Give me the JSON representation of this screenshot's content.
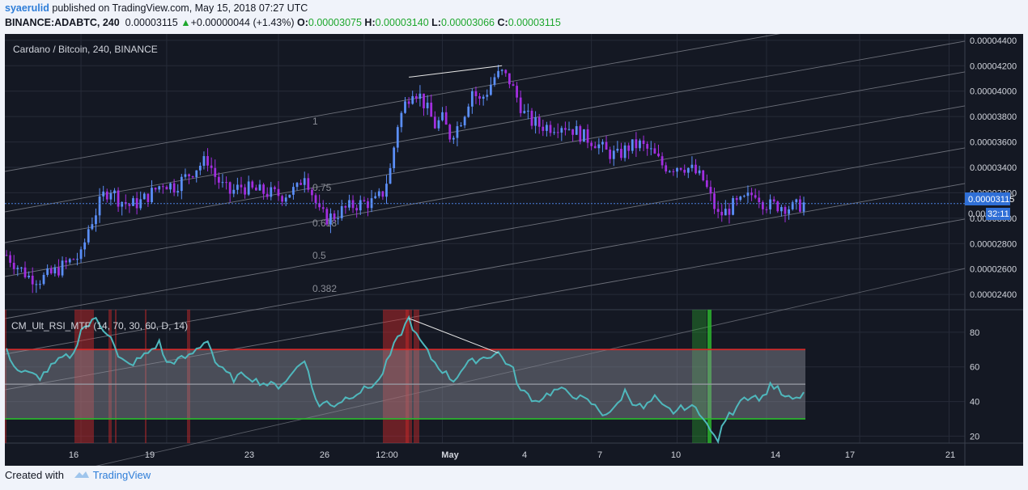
{
  "header": {
    "user": "syaerulid",
    "published": "published on TradingView.com, May 15, 2018 07:27 UTC",
    "symbol": "BINANCE:ADABTC, 240",
    "last": "0.00003115",
    "change": "+0.00000044 (+1.43%)",
    "o_label": "O:",
    "o_value": "0.00003075",
    "h_label": "H:",
    "h_value": "0.00003140",
    "l_label": "L:",
    "l_value": "0.00003066",
    "c_label": "C:",
    "c_value": "0.00003115"
  },
  "chart_title": "Cardano / Bitcoin, 240, BINANCE",
  "indicator_label": "CM_Ult_RSI_MTF (14, 70, 30, 60, D, 14)",
  "price_tag": "0.00003115",
  "countdown_prefix": "0.000",
  "countdown": "32:11",
  "fib_labels": [
    {
      "level": 1,
      "label": "1"
    },
    {
      "level": 0.75,
      "label": "0.75"
    },
    {
      "level": 0.618,
      "label": "0.618"
    },
    {
      "level": 0.5,
      "label": "0.5"
    },
    {
      "level": 0.382,
      "label": "0.382"
    }
  ],
  "footer": {
    "created": "Created with",
    "brand": "TradingView"
  },
  "colors": {
    "bull": "#5b8ff9",
    "bear": "#a32ee0",
    "rsi": "#4fb8bd",
    "ob": "#d32b2b",
    "os": "#2bb32e",
    "bg": "#141823"
  },
  "chart_data": [
    {
      "type": "candlestick",
      "title": "Cardano / Bitcoin, 240, BINANCE",
      "x_ticks": [
        "16",
        "19",
        "23",
        "26",
        "12:00",
        "May",
        "4",
        "7",
        "10",
        "14",
        "17",
        "21"
      ],
      "y_ticks": [
        "0.00004400",
        "0.00004200",
        "0.00004000",
        "0.00003800",
        "0.00003600",
        "0.00003400",
        "0.00003200",
        "0.00003000",
        "0.00002800",
        "0.00002600",
        "0.00002400"
      ],
      "ylim": [
        2.28e-05,
        4.45e-05
      ],
      "close_path": [
        [
          0,
          2.71e-05
        ],
        [
          3,
          2.62e-05
        ],
        [
          6,
          2.54e-05
        ],
        [
          9,
          2.52e-05
        ],
        [
          12,
          2.56e-05
        ],
        [
          15,
          2.62e-05
        ],
        [
          18,
          2.68e-05
        ],
        [
          20,
          2.7e-05
        ],
        [
          22,
          2.92e-05
        ],
        [
          24,
          3.05e-05
        ],
        [
          26,
          3.18e-05
        ],
        [
          28,
          3.23e-05
        ],
        [
          30,
          3.15e-05
        ],
        [
          33,
          3.1e-05
        ],
        [
          36,
          3.13e-05
        ],
        [
          39,
          3.2e-05
        ],
        [
          42,
          3.28e-05
        ],
        [
          45,
          3.25e-05
        ],
        [
          48,
          3.32e-05
        ],
        [
          51,
          3.4e-05
        ],
        [
          54,
          3.46e-05
        ],
        [
          56,
          3.33e-05
        ],
        [
          58,
          3.25e-05
        ],
        [
          60,
          3.2e-05
        ],
        [
          63,
          3.25e-05
        ],
        [
          66,
          3.22e-05
        ],
        [
          70,
          3.2e-05
        ],
        [
          74,
          3.18e-05
        ],
        [
          78,
          3.23e-05
        ],
        [
          80,
          3.36e-05
        ],
        [
          82,
          3.2e-05
        ],
        [
          84,
          3.04e-05
        ],
        [
          86,
          3e-05
        ],
        [
          88,
          3.02e-05
        ],
        [
          90,
          3.06e-05
        ],
        [
          93,
          3.1e-05
        ],
        [
          96,
          3.12e-05
        ],
        [
          99,
          3.13e-05
        ],
        [
          101,
          3.2e-05
        ],
        [
          103,
          3.38e-05
        ],
        [
          105,
          3.74e-05
        ],
        [
          107,
          3.9e-05
        ],
        [
          109,
          4.02e-05
        ],
        [
          111,
          3.96e-05
        ],
        [
          113,
          3.85e-05
        ],
        [
          115,
          3.73e-05
        ],
        [
          117,
          3.78e-05
        ],
        [
          119,
          3.65e-05
        ],
        [
          121,
          3.72e-05
        ],
        [
          123,
          3.84e-05
        ],
        [
          125,
          4.01e-05
        ],
        [
          127,
          3.92e-05
        ],
        [
          129,
          4e-05
        ],
        [
          131,
          4.11e-05
        ],
        [
          133,
          4.14e-05
        ],
        [
          135,
          4.08e-05
        ],
        [
          137,
          3.95e-05
        ],
        [
          139,
          3.82e-05
        ],
        [
          141,
          3.76e-05
        ],
        [
          143,
          3.73e-05
        ],
        [
          146,
          3.72e-05
        ],
        [
          149,
          3.74e-05
        ],
        [
          152,
          3.7e-05
        ],
        [
          155,
          3.64e-05
        ],
        [
          158,
          3.6e-05
        ],
        [
          161,
          3.52e-05
        ],
        [
          164,
          3.49e-05
        ],
        [
          167,
          3.56e-05
        ],
        [
          170,
          3.58e-05
        ],
        [
          173,
          3.52e-05
        ],
        [
          176,
          3.42e-05
        ],
        [
          178,
          3.4e-05
        ],
        [
          181,
          3.42e-05
        ],
        [
          184,
          3.38e-05
        ],
        [
          187,
          3.3e-05
        ],
        [
          189,
          3.16e-05
        ],
        [
          191,
          3.02e-05
        ],
        [
          193,
          3.05e-05
        ],
        [
          195,
          3.1e-05
        ],
        [
          197,
          3.12e-05
        ],
        [
          199,
          3.16e-05
        ],
        [
          201,
          3.21e-05
        ],
        [
          203,
          3.13e-05
        ],
        [
          205,
          3.1e-05
        ],
        [
          208,
          3.1e-05
        ],
        [
          211,
          3.08e-05
        ],
        [
          214,
          3.115e-05
        ]
      ]
    },
    {
      "type": "line",
      "title": "CM_Ult_RSI_MTF (14, 70, 30, 60, D, 14)",
      "y_ticks": [
        "80",
        "60",
        "40",
        "20"
      ],
      "ylim": [
        16,
        93
      ],
      "levels": {
        "overbought": 70,
        "mid": 50,
        "oversold": 30
      },
      "series": [
        {
          "values": [
            [
              0,
              69
            ],
            [
              3,
              58
            ],
            [
              6,
              56
            ],
            [
              9,
              54
            ],
            [
              12,
              60
            ],
            [
              15,
              65
            ],
            [
              18,
              67
            ],
            [
              20,
              82
            ],
            [
              22,
              84
            ],
            [
              24,
              88
            ],
            [
              26,
              82
            ],
            [
              28,
              78
            ],
            [
              30,
              65
            ],
            [
              33,
              61
            ],
            [
              36,
              65
            ],
            [
              39,
              70
            ],
            [
              41,
              74
            ],
            [
              43,
              62
            ],
            [
              46,
              64
            ],
            [
              49,
              66
            ],
            [
              52,
              72
            ],
            [
              54,
              76
            ],
            [
              56,
              63
            ],
            [
              58,
              58
            ],
            [
              61,
              53
            ],
            [
              64,
              56
            ],
            [
              67,
              52
            ],
            [
              70,
              50
            ],
            [
              73,
              49
            ],
            [
              76,
              54
            ],
            [
              78,
              60
            ],
            [
              80,
              65
            ],
            [
              82,
              48
            ],
            [
              84,
              37
            ],
            [
              86,
              40
            ],
            [
              88,
              38
            ],
            [
              91,
              42
            ],
            [
              94,
              45
            ],
            [
              97,
              48
            ],
            [
              100,
              52
            ],
            [
              102,
              62
            ],
            [
              104,
              72
            ],
            [
              106,
              80
            ],
            [
              108,
              88
            ],
            [
              110,
              78
            ],
            [
              112,
              72
            ],
            [
              114,
              65
            ],
            [
              116,
              60
            ],
            [
              118,
              56
            ],
            [
              120,
              52
            ],
            [
              122,
              58
            ],
            [
              124,
              62
            ],
            [
              126,
              64
            ],
            [
              129,
              66
            ],
            [
              132,
              68
            ],
            [
              134,
              63
            ],
            [
              136,
              58
            ],
            [
              138,
              46
            ],
            [
              140,
              44
            ],
            [
              142,
              40
            ],
            [
              145,
              44
            ],
            [
              148,
              47
            ],
            [
              151,
              45
            ],
            [
              154,
              42
            ],
            [
              157,
              39
            ],
            [
              160,
              33
            ],
            [
              163,
              35
            ],
            [
              166,
              46
            ],
            [
              168,
              40
            ],
            [
              171,
              36
            ],
            [
              174,
              42
            ],
            [
              176,
              37
            ],
            [
              179,
              34
            ],
            [
              182,
              37
            ],
            [
              185,
              36
            ],
            [
              187,
              32
            ],
            [
              189,
              22
            ],
            [
              191,
              18
            ],
            [
              193,
              30
            ],
            [
              195,
              34
            ],
            [
              197,
              42
            ],
            [
              200,
              43
            ],
            [
              203,
              42
            ],
            [
              205,
              50
            ],
            [
              207,
              47
            ],
            [
              209,
              42
            ],
            [
              212,
              41
            ],
            [
              214,
              45
            ]
          ]
        }
      ]
    }
  ]
}
